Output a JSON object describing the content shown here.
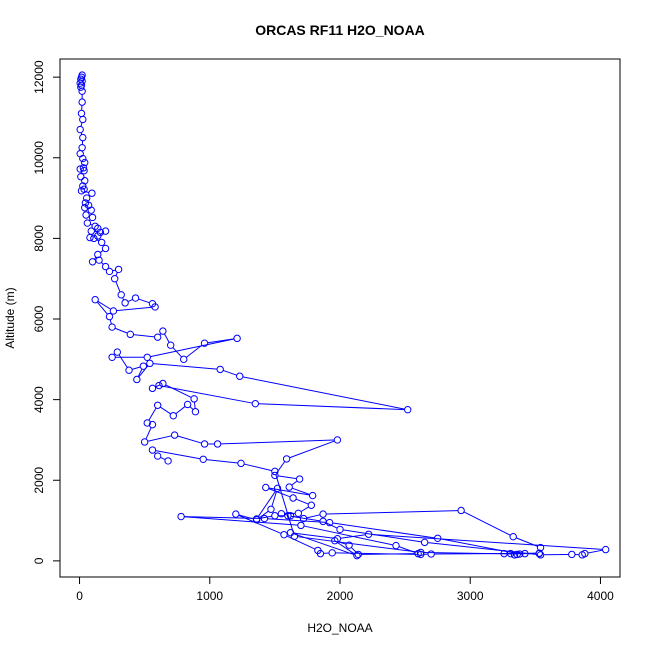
{
  "chart_data": {
    "type": "line",
    "title": "ORCAS RF11 H2O_NOAA",
    "xlabel": "H2O_NOAA",
    "ylabel": "Altitude (m)",
    "xlim": [
      -150,
      4150
    ],
    "ylim": [
      -400,
      12450
    ],
    "x_ticks": [
      0,
      1000,
      2000,
      3000,
      4000
    ],
    "y_ticks": [
      0,
      2000,
      4000,
      6000,
      8000,
      10000,
      12000
    ],
    "grid": false,
    "legend": "none",
    "series": [
      {
        "color": "#0000ff",
        "marker": "open-circle",
        "points": [
          [
            20,
            12050
          ],
          [
            15,
            12000
          ],
          [
            10,
            11950
          ],
          [
            20,
            11900
          ],
          [
            5,
            11850
          ],
          [
            15,
            11800
          ],
          [
            10,
            11750
          ],
          [
            20,
            11650
          ],
          [
            20,
            11380
          ],
          [
            15,
            11100
          ],
          [
            25,
            10950
          ],
          [
            5,
            10700
          ],
          [
            25,
            10500
          ],
          [
            20,
            10250
          ],
          [
            5,
            10100
          ],
          [
            25,
            9980
          ],
          [
            40,
            9880
          ],
          [
            30,
            9750
          ],
          [
            5,
            9720
          ],
          [
            35,
            9680
          ],
          [
            10,
            9530
          ],
          [
            40,
            9430
          ],
          [
            25,
            9300
          ],
          [
            35,
            9220
          ],
          [
            15,
            9180
          ],
          [
            95,
            9120
          ],
          [
            55,
            9000
          ],
          [
            45,
            8880
          ],
          [
            70,
            8820
          ],
          [
            40,
            8760
          ],
          [
            90,
            8700
          ],
          [
            50,
            8580
          ],
          [
            100,
            8520
          ],
          [
            60,
            8380
          ],
          [
            120,
            8300
          ],
          [
            140,
            8250
          ],
          [
            90,
            8180
          ],
          [
            160,
            8150
          ],
          [
            200,
            8180
          ],
          [
            140,
            8060
          ],
          [
            80,
            8020
          ],
          [
            110,
            8000
          ],
          [
            170,
            7900
          ],
          [
            200,
            7750
          ],
          [
            140,
            7600
          ],
          [
            100,
            7420
          ],
          [
            150,
            7460
          ],
          [
            200,
            7300
          ],
          [
            230,
            7180
          ],
          [
            300,
            7230
          ],
          [
            270,
            7000
          ],
          [
            320,
            6600
          ],
          [
            350,
            6400
          ],
          [
            430,
            6520
          ],
          [
            560,
            6380
          ],
          [
            580,
            6300
          ],
          [
            260,
            6200
          ],
          [
            120,
            6480
          ],
          [
            230,
            6060
          ],
          [
            250,
            5800
          ],
          [
            390,
            5620
          ],
          [
            600,
            5550
          ],
          [
            640,
            5700
          ],
          [
            700,
            5350
          ],
          [
            800,
            5000
          ],
          [
            960,
            5400
          ],
          [
            1210,
            5520
          ],
          [
            520,
            5050
          ],
          [
            250,
            5050
          ],
          [
            290,
            5180
          ],
          [
            380,
            4730
          ],
          [
            490,
            4830
          ],
          [
            440,
            4500
          ],
          [
            540,
            4900
          ],
          [
            1080,
            4750
          ],
          [
            1230,
            4580
          ],
          [
            2520,
            3750
          ],
          [
            1350,
            3900
          ],
          [
            610,
            4350
          ],
          [
            560,
            4280
          ],
          [
            640,
            4400
          ],
          [
            880,
            4020
          ],
          [
            890,
            3700
          ],
          [
            830,
            3880
          ],
          [
            720,
            3600
          ],
          [
            600,
            3860
          ],
          [
            520,
            3420
          ],
          [
            560,
            3380
          ],
          [
            500,
            2950
          ],
          [
            730,
            3120
          ],
          [
            960,
            2900
          ],
          [
            1060,
            2900
          ],
          [
            1980,
            3000
          ],
          [
            1590,
            2530
          ],
          [
            1500,
            2120
          ],
          [
            1690,
            2030
          ],
          [
            1610,
            1830
          ],
          [
            1790,
            1620
          ],
          [
            1430,
            1820
          ],
          [
            1640,
            1560
          ],
          [
            1780,
            1380
          ],
          [
            1680,
            1180
          ],
          [
            1550,
            1170
          ],
          [
            1620,
            1120
          ],
          [
            1720,
            1050
          ],
          [
            1870,
            1160
          ],
          [
            2930,
            1250
          ],
          [
            3330,
            600
          ],
          [
            3540,
            330
          ],
          [
            3530,
            180
          ],
          [
            3260,
            180
          ],
          [
            3310,
            180
          ],
          [
            3340,
            150
          ],
          [
            3360,
            160
          ],
          [
            3420,
            180
          ],
          [
            3530,
            190
          ],
          [
            2700,
            170
          ],
          [
            2620,
            160
          ],
          [
            1940,
            200
          ],
          [
            1850,
            180
          ],
          [
            1830,
            260
          ],
          [
            1570,
            650
          ],
          [
            1200,
            1160
          ],
          [
            1360,
            1020
          ],
          [
            1470,
            1280
          ],
          [
            1520,
            1800
          ],
          [
            1360,
            1040
          ],
          [
            1500,
            1120
          ],
          [
            1600,
            1120
          ],
          [
            1870,
            980
          ],
          [
            2000,
            780
          ],
          [
            2650,
            460
          ],
          [
            3540,
            150
          ],
          [
            3780,
            160
          ],
          [
            3860,
            150
          ],
          [
            3880,
            180
          ],
          [
            4040,
            280
          ],
          [
            2220,
            660
          ],
          [
            1980,
            550
          ],
          [
            1620,
            700
          ],
          [
            2130,
            130
          ],
          [
            1960,
            500
          ],
          [
            2070,
            390
          ],
          [
            2140,
            160
          ],
          [
            2600,
            180
          ],
          [
            2430,
            380
          ],
          [
            1700,
            880
          ],
          [
            780,
            1100
          ],
          [
            1420,
            1050
          ],
          [
            1920,
            950
          ],
          [
            2750,
            560
          ],
          [
            3380,
            170
          ],
          [
            2620,
            210
          ],
          [
            1650,
            610
          ],
          [
            1500,
            2220
          ],
          [
            1240,
            2420
          ],
          [
            950,
            2520
          ],
          [
            560,
            2750
          ],
          [
            600,
            2600
          ],
          [
            680,
            2480
          ]
        ]
      }
    ]
  }
}
